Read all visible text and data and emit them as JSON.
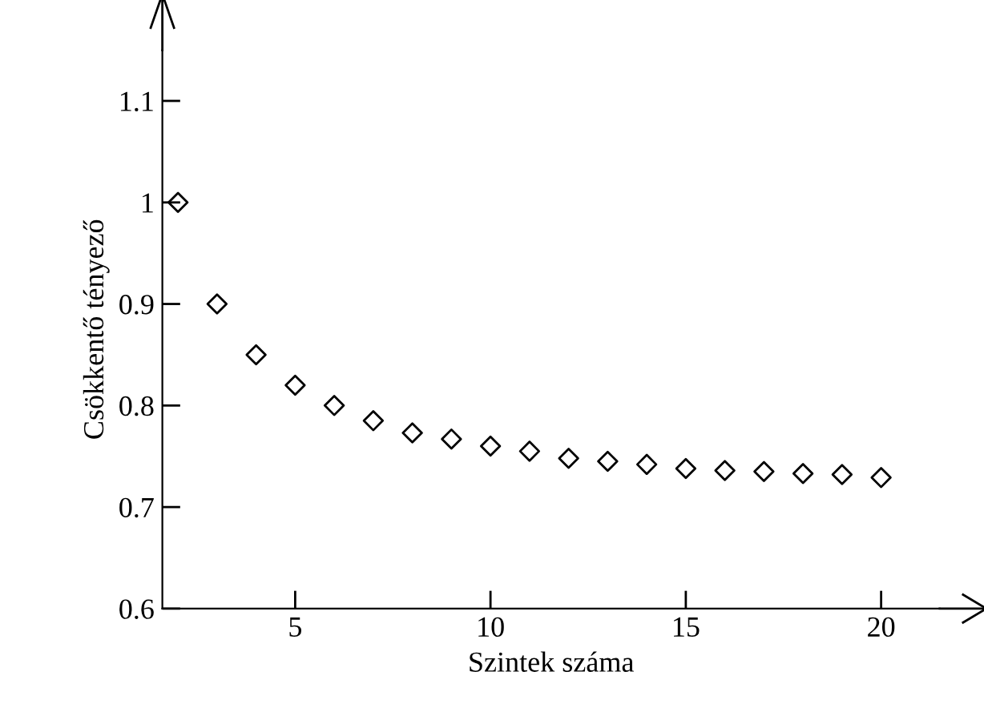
{
  "chart_data": {
    "type": "scatter",
    "xlabel": "Szintek száma",
    "ylabel": "Csökkentő tényező",
    "x": [
      2,
      3,
      4,
      5,
      6,
      7,
      8,
      9,
      10,
      11,
      12,
      13,
      14,
      15,
      16,
      17,
      18,
      19,
      20
    ],
    "series": [
      {
        "color": "#000000",
        "values": [
          1.0,
          0.9,
          0.85,
          0.82,
          0.8,
          0.785,
          0.773,
          0.767,
          0.76,
          0.755,
          0.748,
          0.745,
          0.742,
          0.738,
          0.736,
          0.735,
          0.733,
          0.732,
          0.729
        ]
      }
    ],
    "marker": "diamond",
    "xlim": [
      1.6,
      21.5
    ],
    "ylim": [
      0.6,
      1.15
    ],
    "xticks": [
      5,
      10,
      15,
      20
    ],
    "yticks": [
      0.6,
      0.7,
      0.8,
      0.9,
      {
        "value": 1.0,
        "label": "1"
      },
      1.1
    ],
    "grid": false
  }
}
